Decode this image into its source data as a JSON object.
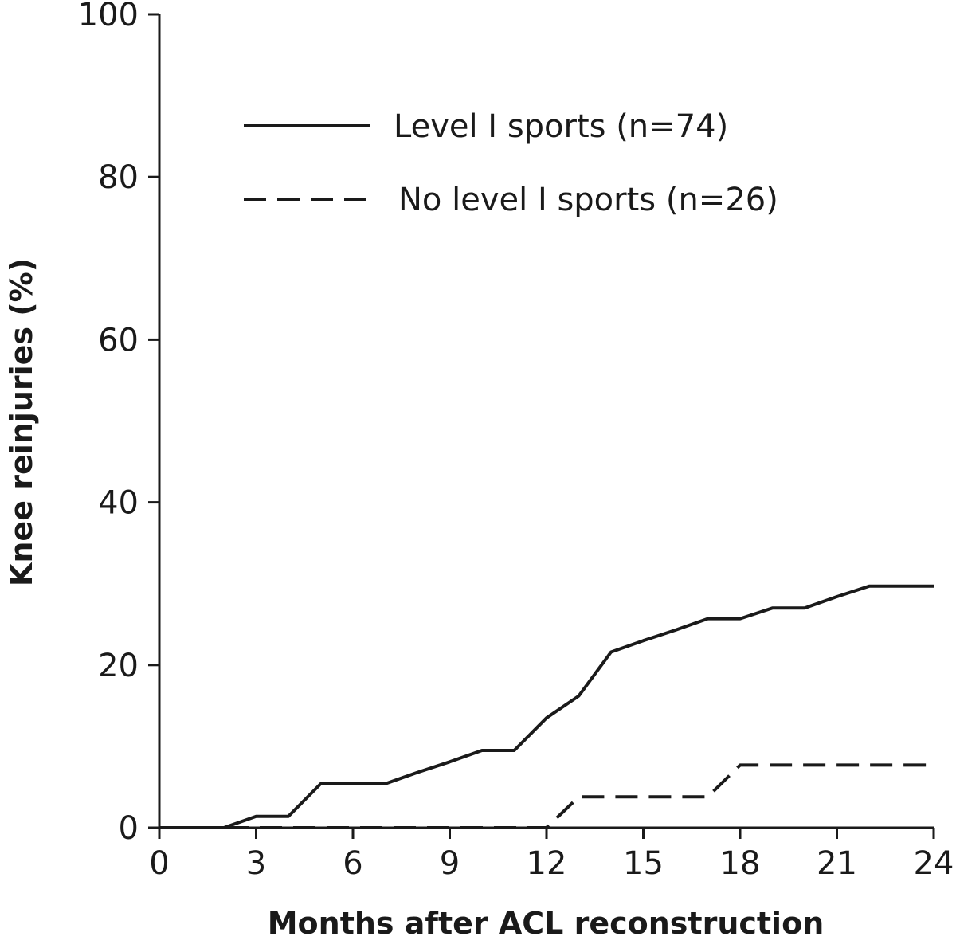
{
  "chart_data": {
    "type": "line",
    "xlabel": "Months after ACL reconstruction",
    "ylabel": "Knee reinjuries (%)",
    "xlim": [
      0,
      24
    ],
    "ylim": [
      0,
      100
    ],
    "xticks": [
      0,
      3,
      6,
      9,
      12,
      15,
      18,
      21,
      24
    ],
    "yticks": [
      0,
      20,
      40,
      60,
      80,
      100
    ],
    "grid": false,
    "legend_position": "top-center",
    "series": [
      {
        "name": "Level I sports (n=74)",
        "style": "solid",
        "x": [
          0,
          2,
          3,
          4,
          5,
          6,
          7,
          8,
          9,
          10,
          11,
          12,
          13,
          14,
          15,
          16,
          17,
          18,
          19,
          20,
          21,
          22,
          23,
          24
        ],
        "y": [
          0,
          0,
          1.4,
          1.4,
          5.4,
          5.4,
          5.4,
          6.8,
          8.1,
          9.5,
          9.5,
          13.5,
          16.2,
          21.6,
          23.0,
          24.3,
          25.7,
          25.7,
          27.0,
          27.0,
          28.4,
          29.7,
          29.7,
          29.7
        ]
      },
      {
        "name": "No level I sports (n=26)",
        "style": "dashed",
        "x": [
          0,
          12,
          13,
          17,
          18,
          24
        ],
        "y": [
          0,
          0,
          3.8,
          3.8,
          7.7,
          7.7
        ]
      }
    ]
  }
}
